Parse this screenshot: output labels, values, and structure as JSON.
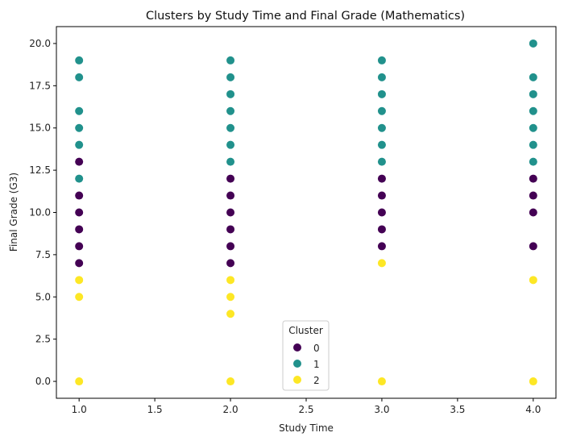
{
  "chart_data": {
    "type": "scatter",
    "title": "Clusters by Study Time and Final Grade (Mathematics)",
    "xlabel": "Study Time",
    "ylabel": "Final Grade (G3)",
    "xlim": [
      0.85,
      4.15
    ],
    "ylim": [
      -1.0,
      21.0
    ],
    "xticks": [
      1.0,
      1.5,
      2.0,
      2.5,
      3.0,
      3.5,
      4.0
    ],
    "xtick_labels": [
      "1.0",
      "1.5",
      "2.0",
      "2.5",
      "3.0",
      "3.5",
      "4.0"
    ],
    "yticks": [
      0.0,
      2.5,
      5.0,
      7.5,
      10.0,
      12.5,
      15.0,
      17.5,
      20.0
    ],
    "ytick_labels": [
      "0.0",
      "2.5",
      "5.0",
      "7.5",
      "10.0",
      "12.5",
      "15.0",
      "17.5",
      "20.0"
    ],
    "grid": false,
    "legend": {
      "title": "Cluster",
      "placement": "lower-center",
      "entries": [
        "0",
        "1",
        "2"
      ]
    },
    "series": [
      {
        "name": "0",
        "color": "#440154",
        "points": [
          [
            1,
            7
          ],
          [
            1,
            8
          ],
          [
            1,
            9
          ],
          [
            1,
            10
          ],
          [
            1,
            11
          ],
          [
            1,
            13
          ],
          [
            2,
            7
          ],
          [
            2,
            8
          ],
          [
            2,
            9
          ],
          [
            2,
            10
          ],
          [
            2,
            11
          ],
          [
            2,
            12
          ],
          [
            3,
            8
          ],
          [
            3,
            9
          ],
          [
            3,
            10
          ],
          [
            3,
            11
          ],
          [
            3,
            12
          ],
          [
            4,
            8
          ],
          [
            4,
            10
          ],
          [
            4,
            11
          ],
          [
            4,
            12
          ]
        ]
      },
      {
        "name": "1",
        "color": "#21918c",
        "points": [
          [
            1,
            12
          ],
          [
            1,
            14
          ],
          [
            1,
            15
          ],
          [
            1,
            16
          ],
          [
            1,
            18
          ],
          [
            1,
            19
          ],
          [
            2,
            13
          ],
          [
            2,
            14
          ],
          [
            2,
            15
          ],
          [
            2,
            16
          ],
          [
            2,
            17
          ],
          [
            2,
            18
          ],
          [
            2,
            19
          ],
          [
            3,
            13
          ],
          [
            3,
            14
          ],
          [
            3,
            15
          ],
          [
            3,
            16
          ],
          [
            3,
            17
          ],
          [
            3,
            18
          ],
          [
            3,
            19
          ],
          [
            4,
            13
          ],
          [
            4,
            14
          ],
          [
            4,
            15
          ],
          [
            4,
            16
          ],
          [
            4,
            17
          ],
          [
            4,
            18
          ],
          [
            4,
            20
          ]
        ]
      },
      {
        "name": "2",
        "color": "#fde725",
        "points": [
          [
            1,
            0
          ],
          [
            1,
            5
          ],
          [
            1,
            6
          ],
          [
            2,
            0
          ],
          [
            2,
            4
          ],
          [
            2,
            5
          ],
          [
            2,
            6
          ],
          [
            3,
            0
          ],
          [
            3,
            7
          ],
          [
            4,
            0
          ],
          [
            4,
            6
          ]
        ]
      }
    ]
  }
}
